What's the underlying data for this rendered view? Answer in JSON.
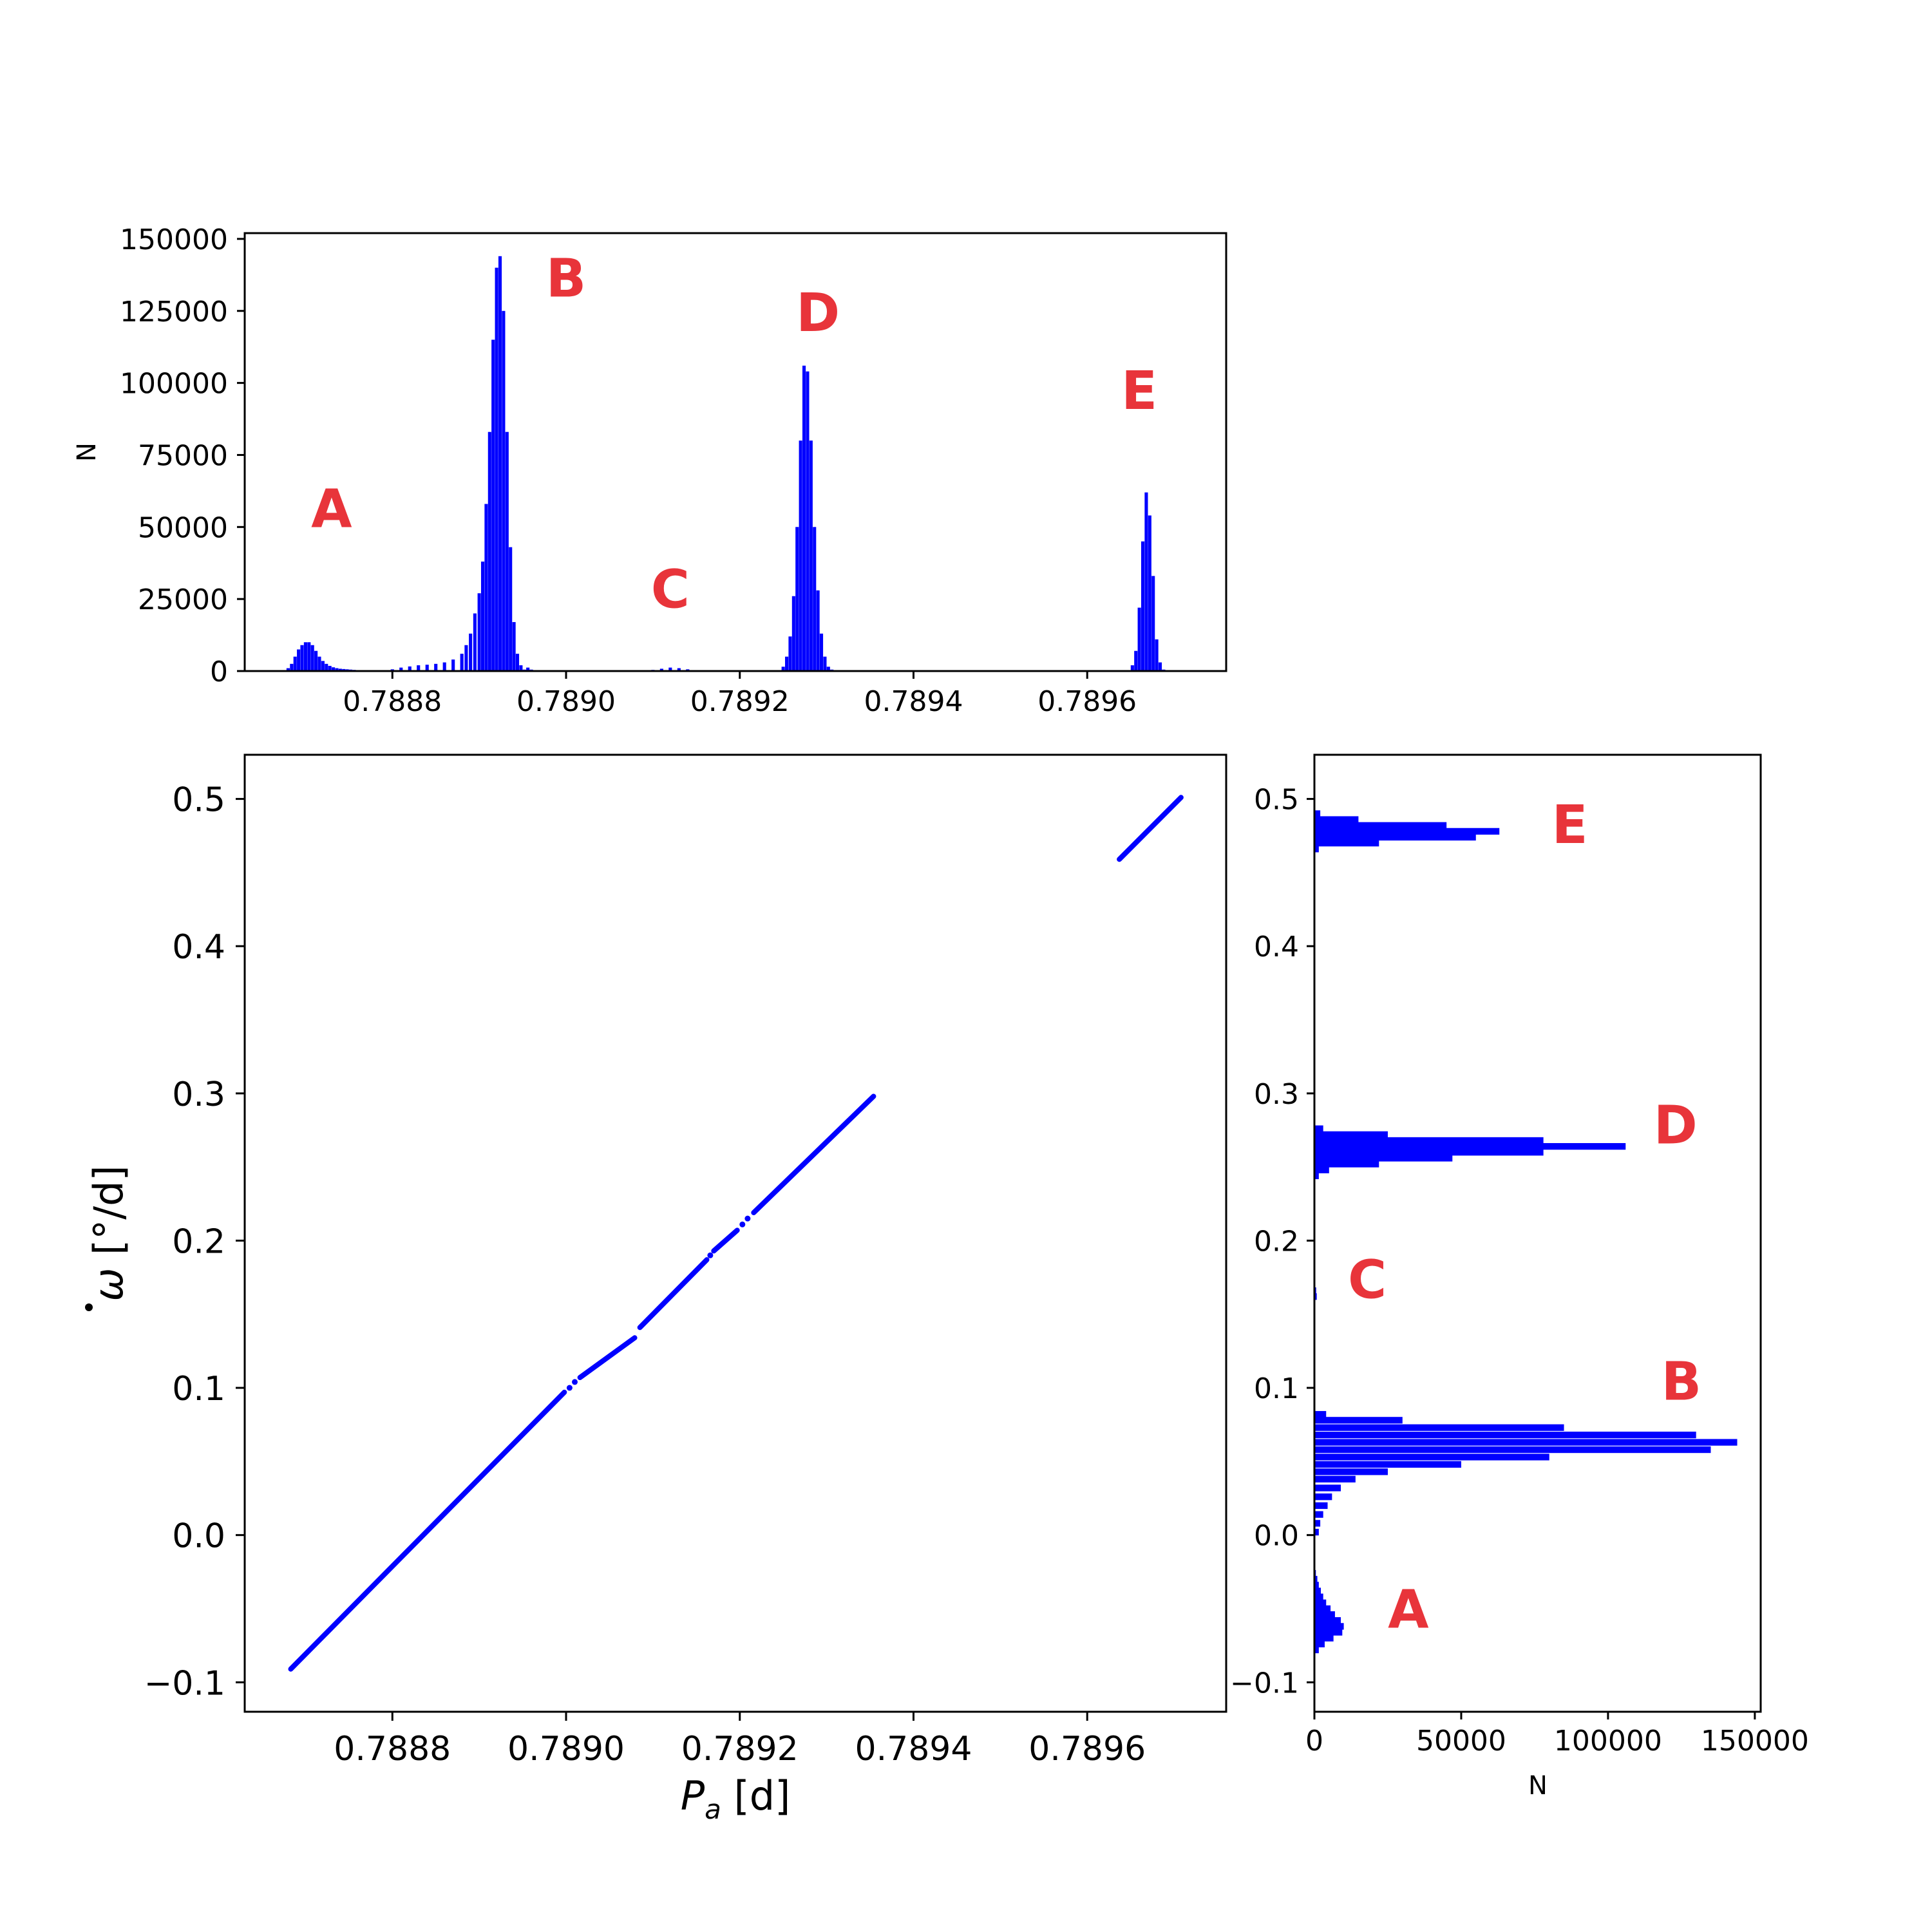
{
  "colors": {
    "data": "#0000ff",
    "peak_label": "#e8343a",
    "axes": "#000000",
    "background": "#ffffff"
  },
  "chart_data": [
    {
      "id": "top_histogram",
      "type": "bar",
      "xlabel": "",
      "ylabel": "N",
      "xlim": [
        0.78863,
        0.78976
      ],
      "ylim": [
        0,
        152000
      ],
      "xticks": [
        0.7888,
        0.789,
        0.7892,
        0.7894,
        0.7896
      ],
      "xtick_labels": [
        "0.7888",
        "0.7890",
        "0.7892",
        "0.7894",
        "0.7896"
      ],
      "yticks": [
        0,
        25000,
        50000,
        75000,
        100000,
        125000,
        150000
      ],
      "ytick_labels": [
        "0",
        "25000",
        "50000",
        "75000",
        "100000",
        "125000",
        "150000"
      ],
      "bin_width": 3.8e-06,
      "x": [
        0.78868,
        0.788684,
        0.788688,
        0.788692,
        0.788696,
        0.7887,
        0.788704,
        0.788708,
        0.788712,
        0.788716,
        0.78872,
        0.788724,
        0.788728,
        0.788732,
        0.788736,
        0.78874,
        0.788744,
        0.788748,
        0.788752,
        0.788756,
        0.78876,
        0.788764,
        0.788768,
        0.78879,
        0.7888,
        0.78881,
        0.78882,
        0.78883,
        0.78884,
        0.78885,
        0.78886,
        0.78887,
        0.78888,
        0.788885,
        0.78889,
        0.788895,
        0.7889,
        0.788904,
        0.788908,
        0.788912,
        0.788916,
        0.78892,
        0.788924,
        0.788928,
        0.788932,
        0.788936,
        0.78894,
        0.788944,
        0.788948,
        0.788952,
        0.788956,
        0.78896,
        0.788964,
        0.788968,
        0.788972,
        0.7891,
        0.78911,
        0.78912,
        0.78913,
        0.78914,
        0.78915,
        0.789246,
        0.78925,
        0.789254,
        0.789258,
        0.789262,
        0.789266,
        0.78927,
        0.789274,
        0.789278,
        0.789282,
        0.789286,
        0.78929,
        0.789294,
        0.789298,
        0.789302,
        0.789306,
        0.78931,
        0.789652,
        0.789656,
        0.78966,
        0.789664,
        0.789668,
        0.789672,
        0.789676,
        0.78968,
        0.789684,
        0.789688
      ],
      "values": [
        1000,
        2500,
        5000,
        7500,
        9000,
        10000,
        10000,
        9000,
        7000,
        5000,
        3500,
        2500,
        1800,
        1300,
        1000,
        800,
        700,
        600,
        500,
        400,
        300,
        200,
        150,
        300,
        600,
        1200,
        1600,
        2000,
        2200,
        2500,
        3000,
        4000,
        6000,
        9000,
        13000,
        20000,
        27000,
        38000,
        58000,
        83000,
        115000,
        140000,
        144000,
        125000,
        83000,
        43000,
        17000,
        6000,
        2000,
        500,
        1200,
        500,
        200,
        100,
        50,
        400,
        800,
        1200,
        1000,
        600,
        300,
        300,
        1500,
        5000,
        12000,
        26000,
        50000,
        80000,
        106000,
        104000,
        80000,
        50000,
        28000,
        13000,
        5000,
        1500,
        500,
        200,
        2000,
        7000,
        22000,
        45000,
        62000,
        54000,
        33000,
        11000,
        3000,
        500
      ],
      "annotations": [
        "A",
        "B",
        "C",
        "D",
        "E"
      ],
      "annotation_positions": [
        [
          0.78873,
          50000
        ],
        [
          0.789,
          130000
        ],
        [
          0.78912,
          22000
        ],
        [
          0.78929,
          118000
        ],
        [
          0.78966,
          91000
        ]
      ]
    },
    {
      "id": "scatter",
      "type": "scatter",
      "xlabel": "P_a [d]",
      "ylabel": "ω̇ [°/d]",
      "xlim": [
        0.78863,
        0.78976
      ],
      "ylim": [
        -0.12,
        0.53
      ],
      "xticks": [
        0.7888,
        0.789,
        0.7892,
        0.7894,
        0.7896
      ],
      "xtick_labels": [
        "0.7888",
        "0.7890",
        "0.7892",
        "0.7894",
        "0.7896"
      ],
      "yticks": [
        -0.1,
        0.0,
        0.1,
        0.2,
        0.3,
        0.4,
        0.5
      ],
      "ytick_labels": [
        "−0.1",
        "0.0",
        "0.1",
        "0.2",
        "0.3",
        "0.4",
        "0.5"
      ],
      "segments": [
        {
          "x": [
            0.788683,
            0.788998
          ],
          "y": [
            -0.091,
            0.097
          ]
        },
        {
          "x": [
            0.789016,
            0.789079
          ],
          "y": [
            0.107,
            0.134
          ]
        },
        {
          "x": [
            0.789085,
            0.789162
          ],
          "y": [
            0.141,
            0.187
          ]
        },
        {
          "x": [
            0.78917,
            0.789197
          ],
          "y": [
            0.193,
            0.207
          ]
        },
        {
          "x": [
            0.789216,
            0.789354
          ],
          "y": [
            0.219,
            0.298
          ]
        },
        {
          "x": [
            0.789637,
            0.789708
          ],
          "y": [
            0.459,
            0.501
          ]
        }
      ],
      "scatter_points": [
        {
          "x": 0.789004,
          "y": 0.1
        },
        {
          "x": 0.78901,
          "y": 0.104
        },
        {
          "x": 0.789166,
          "y": 0.19
        },
        {
          "x": 0.789203,
          "y": 0.211
        },
        {
          "x": 0.789209,
          "y": 0.215
        }
      ]
    },
    {
      "id": "right_histogram",
      "type": "bar",
      "orientation": "horizontal",
      "xlabel": "N",
      "ylabel": "",
      "xlim": [
        0,
        152000
      ],
      "ylim": [
        -0.12,
        0.53
      ],
      "xticks": [
        0,
        50000,
        100000,
        150000
      ],
      "xtick_labels": [
        "0",
        "50000",
        "100000",
        "150000"
      ],
      "yticks": [
        -0.1,
        0.0,
        0.1,
        0.2,
        0.3,
        0.4,
        0.5
      ],
      "ytick_labels": [
        "−0.1",
        "0.0",
        "0.1",
        "0.2",
        "0.3",
        "0.4",
        "0.5"
      ],
      "bin_height": 0.0045,
      "y": [
        -0.078,
        -0.074,
        -0.07,
        -0.066,
        -0.062,
        -0.058,
        -0.054,
        -0.05,
        -0.046,
        -0.042,
        -0.038,
        -0.034,
        -0.03,
        -0.026,
        0.002,
        0.008,
        0.014,
        0.02,
        0.026,
        0.032,
        0.038,
        0.043,
        0.048,
        0.053,
        0.058,
        0.063,
        0.068,
        0.073,
        0.078,
        0.082,
        0.162,
        0.166,
        0.244,
        0.248,
        0.252,
        0.256,
        0.26,
        0.264,
        0.268,
        0.272,
        0.276,
        0.466,
        0.47,
        0.474,
        0.478,
        0.482,
        0.486,
        0.49
      ],
      "values": [
        1500,
        3500,
        6500,
        9500,
        10000,
        9000,
        7000,
        5500,
        4000,
        3000,
        2200,
        1500,
        1000,
        500,
        1500,
        2000,
        3000,
        4500,
        6000,
        9000,
        14000,
        25000,
        50000,
        80000,
        135000,
        144000,
        130000,
        85000,
        30000,
        4000,
        800,
        600,
        1500,
        5000,
        22000,
        47000,
        78000,
        106000,
        78000,
        25000,
        3000,
        1500,
        22000,
        55000,
        63000,
        45000,
        15000,
        2000
      ],
      "annotations": [
        "A",
        "B",
        "C",
        "D",
        "E"
      ],
      "annotation_positions": [
        [
          32000,
          -0.063
        ],
        [
          125000,
          0.092
        ],
        [
          18000,
          0.161
        ],
        [
          123000,
          0.266
        ],
        [
          87000,
          0.47
        ]
      ]
    }
  ]
}
